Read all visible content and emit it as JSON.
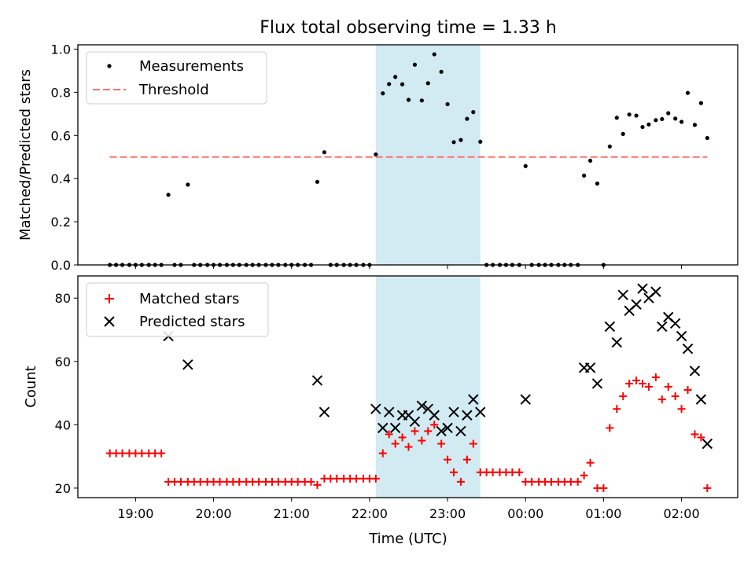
{
  "chart_data": [
    {
      "type": "scatter",
      "title": "Flux total observing time = 1.33 h",
      "ylabel": "Matched/Predicted stars",
      "ylim": [
        0,
        1.02
      ],
      "yticks": [
        "0.0",
        "0.2",
        "0.4",
        "0.6",
        "0.8",
        "1.0"
      ],
      "xlim": [
        18.26,
        26.72
      ],
      "x_unit": "hours UTC (values above 24 continue into the next day)",
      "legend_placement": "upper-left",
      "shaded_interval": {
        "x": [
          22.08,
          23.42
        ],
        "color": "#add8e6"
      },
      "series": [
        {
          "name": "Measurements",
          "kind": "points",
          "color": "#000000",
          "points": [
            [
              18.67,
              0
            ],
            [
              18.75,
              0
            ],
            [
              18.83,
              0
            ],
            [
              18.92,
              0
            ],
            [
              19.0,
              0
            ],
            [
              19.08,
              0
            ],
            [
              19.17,
              0
            ],
            [
              19.25,
              0
            ],
            [
              19.33,
              0
            ],
            [
              19.42,
              0.325
            ],
            [
              19.5,
              0
            ],
            [
              19.58,
              0
            ],
            [
              19.67,
              0.372
            ],
            [
              19.75,
              0
            ],
            [
              19.83,
              0
            ],
            [
              19.92,
              0
            ],
            [
              20.0,
              0
            ],
            [
              20.08,
              0
            ],
            [
              20.17,
              0
            ],
            [
              20.25,
              0
            ],
            [
              20.33,
              0
            ],
            [
              20.42,
              0
            ],
            [
              20.5,
              0
            ],
            [
              20.58,
              0
            ],
            [
              20.67,
              0
            ],
            [
              20.75,
              0
            ],
            [
              20.83,
              0
            ],
            [
              20.92,
              0
            ],
            [
              21.0,
              0
            ],
            [
              21.08,
              0
            ],
            [
              21.17,
              0
            ],
            [
              21.25,
              0
            ],
            [
              21.33,
              0.385
            ],
            [
              21.42,
              0.522
            ],
            [
              21.5,
              0
            ],
            [
              21.58,
              0
            ],
            [
              21.67,
              0
            ],
            [
              21.75,
              0
            ],
            [
              21.83,
              0
            ],
            [
              21.92,
              0
            ],
            [
              22.0,
              0
            ],
            [
              22.08,
              0.512
            ],
            [
              22.17,
              0.795
            ],
            [
              22.25,
              0.838
            ],
            [
              22.33,
              0.871
            ],
            [
              22.42,
              0.837
            ],
            [
              22.5,
              0.765
            ],
            [
              22.58,
              0.928
            ],
            [
              22.67,
              0.762
            ],
            [
              22.75,
              0.842
            ],
            [
              22.83,
              0.976
            ],
            [
              22.92,
              0.895
            ],
            [
              23.0,
              0.745
            ],
            [
              23.08,
              0.569
            ],
            [
              23.17,
              0.579
            ],
            [
              23.25,
              0.677
            ],
            [
              23.33,
              0.708
            ],
            [
              23.42,
              0.571
            ],
            [
              23.5,
              0
            ],
            [
              23.58,
              0
            ],
            [
              23.67,
              0
            ],
            [
              23.75,
              0
            ],
            [
              23.83,
              0
            ],
            [
              23.92,
              0
            ],
            [
              24.0,
              0.458
            ],
            [
              24.08,
              0
            ],
            [
              24.17,
              0
            ],
            [
              24.25,
              0
            ],
            [
              24.33,
              0
            ],
            [
              24.42,
              0
            ],
            [
              24.5,
              0
            ],
            [
              24.58,
              0
            ],
            [
              24.67,
              0
            ],
            [
              24.75,
              0.414
            ],
            [
              24.83,
              0.483
            ],
            [
              24.92,
              0.377
            ],
            [
              25.0,
              0
            ],
            [
              25.08,
              0.549
            ],
            [
              25.17,
              0.682
            ],
            [
              25.25,
              0.607
            ],
            [
              25.33,
              0.697
            ],
            [
              25.42,
              0.692
            ],
            [
              25.5,
              0.639
            ],
            [
              25.58,
              0.651
            ],
            [
              25.67,
              0.671
            ],
            [
              25.75,
              0.676
            ],
            [
              25.83,
              0.703
            ],
            [
              25.92,
              0.678
            ],
            [
              26.0,
              0.663
            ],
            [
              26.08,
              0.797
            ],
            [
              26.17,
              0.649
            ],
            [
              26.25,
              0.75
            ],
            [
              26.33,
              0.588
            ]
          ]
        },
        {
          "name": "Threshold",
          "kind": "dashed-line",
          "color": "#ff7070",
          "points": [
            [
              18.67,
              0.5
            ],
            [
              26.33,
              0.5
            ]
          ]
        }
      ]
    },
    {
      "type": "scatter",
      "xlabel": "Time (UTC)",
      "ylabel": "Count",
      "ylim": [
        17,
        87
      ],
      "yticks": [
        "20",
        "40",
        "60",
        "80"
      ],
      "xlim": [
        18.26,
        26.72
      ],
      "xticks": [
        {
          "x": 19,
          "label": "19:00"
        },
        {
          "x": 20,
          "label": "20:00"
        },
        {
          "x": 21,
          "label": "21:00"
        },
        {
          "x": 22,
          "label": "22:00"
        },
        {
          "x": 23,
          "label": "23:00"
        },
        {
          "x": 24,
          "label": "00:00"
        },
        {
          "x": 25,
          "label": "01:00"
        },
        {
          "x": 26,
          "label": "02:00"
        }
      ],
      "legend_placement": "upper-left",
      "shaded_interval": {
        "x": [
          22.08,
          23.42
        ],
        "color": "#add8e6"
      },
      "series": [
        {
          "name": "Matched stars",
          "kind": "plus",
          "color": "#ff0000",
          "points": [
            [
              18.67,
              31
            ],
            [
              18.75,
              31
            ],
            [
              18.83,
              31
            ],
            [
              18.92,
              31
            ],
            [
              19.0,
              31
            ],
            [
              19.08,
              31
            ],
            [
              19.17,
              31
            ],
            [
              19.25,
              31
            ],
            [
              19.33,
              31
            ],
            [
              19.42,
              22
            ],
            [
              19.5,
              22
            ],
            [
              19.58,
              22
            ],
            [
              19.67,
              22
            ],
            [
              19.75,
              22
            ],
            [
              19.83,
              22
            ],
            [
              19.92,
              22
            ],
            [
              20.0,
              22
            ],
            [
              20.08,
              22
            ],
            [
              20.17,
              22
            ],
            [
              20.25,
              22
            ],
            [
              20.33,
              22
            ],
            [
              20.42,
              22
            ],
            [
              20.5,
              22
            ],
            [
              20.58,
              22
            ],
            [
              20.67,
              22
            ],
            [
              20.75,
              22
            ],
            [
              20.83,
              22
            ],
            [
              20.92,
              22
            ],
            [
              21.0,
              22
            ],
            [
              21.08,
              22
            ],
            [
              21.17,
              22
            ],
            [
              21.25,
              22
            ],
            [
              21.33,
              21
            ],
            [
              21.42,
              23
            ],
            [
              21.5,
              23
            ],
            [
              21.58,
              23
            ],
            [
              21.67,
              23
            ],
            [
              21.75,
              23
            ],
            [
              21.83,
              23
            ],
            [
              21.92,
              23
            ],
            [
              22.0,
              23
            ],
            [
              22.08,
              23
            ],
            [
              22.17,
              31
            ],
            [
              22.25,
              37
            ],
            [
              22.33,
              34
            ],
            [
              22.42,
              36
            ],
            [
              22.5,
              33
            ],
            [
              22.58,
              38
            ],
            [
              22.67,
              35
            ],
            [
              22.75,
              38
            ],
            [
              22.83,
              40
            ],
            [
              22.92,
              34
            ],
            [
              23.0,
              29
            ],
            [
              23.08,
              25
            ],
            [
              23.17,
              22
            ],
            [
              23.25,
              29
            ],
            [
              23.33,
              34
            ],
            [
              23.42,
              25
            ],
            [
              23.5,
              25
            ],
            [
              23.58,
              25
            ],
            [
              23.67,
              25
            ],
            [
              23.75,
              25
            ],
            [
              23.83,
              25
            ],
            [
              23.92,
              25
            ],
            [
              24.0,
              22
            ],
            [
              24.08,
              22
            ],
            [
              24.17,
              22
            ],
            [
              24.25,
              22
            ],
            [
              24.33,
              22
            ],
            [
              24.42,
              22
            ],
            [
              24.5,
              22
            ],
            [
              24.58,
              22
            ],
            [
              24.67,
              22
            ],
            [
              24.75,
              24
            ],
            [
              24.83,
              28
            ],
            [
              24.92,
              20
            ],
            [
              25.0,
              20
            ],
            [
              25.08,
              39
            ],
            [
              25.17,
              45
            ],
            [
              25.25,
              49
            ],
            [
              25.33,
              53
            ],
            [
              25.42,
              54
            ],
            [
              25.5,
              53
            ],
            [
              25.58,
              52
            ],
            [
              25.67,
              55
            ],
            [
              25.75,
              48
            ],
            [
              25.83,
              52
            ],
            [
              25.92,
              49
            ],
            [
              26.0,
              45
            ],
            [
              26.08,
              51
            ],
            [
              26.17,
              37
            ],
            [
              26.25,
              36
            ],
            [
              26.33,
              20
            ]
          ]
        },
        {
          "name": "Predicted stars",
          "kind": "cross",
          "color": "#000000",
          "points": [
            [
              19.42,
              68
            ],
            [
              19.67,
              59
            ],
            [
              21.33,
              54
            ],
            [
              21.42,
              44
            ],
            [
              22.08,
              45
            ],
            [
              22.17,
              39
            ],
            [
              22.25,
              44
            ],
            [
              22.33,
              39
            ],
            [
              22.42,
              43
            ],
            [
              22.5,
              43
            ],
            [
              22.58,
              41
            ],
            [
              22.67,
              46
            ],
            [
              22.75,
              45
            ],
            [
              22.83,
              43
            ],
            [
              22.92,
              38
            ],
            [
              23.0,
              39
            ],
            [
              23.08,
              44
            ],
            [
              23.17,
              38
            ],
            [
              23.25,
              43
            ],
            [
              23.33,
              48
            ],
            [
              23.42,
              44
            ],
            [
              24.0,
              48
            ],
            [
              24.75,
              58
            ],
            [
              24.83,
              58
            ],
            [
              24.92,
              53
            ],
            [
              25.08,
              71
            ],
            [
              25.17,
              66
            ],
            [
              25.25,
              81
            ],
            [
              25.33,
              76
            ],
            [
              25.42,
              78
            ],
            [
              25.5,
              83
            ],
            [
              25.58,
              80
            ],
            [
              25.67,
              82
            ],
            [
              25.75,
              71
            ],
            [
              25.83,
              74
            ],
            [
              25.92,
              72
            ],
            [
              26.0,
              68
            ],
            [
              26.08,
              64
            ],
            [
              26.17,
              57
            ],
            [
              26.25,
              48
            ],
            [
              26.33,
              34
            ]
          ]
        }
      ]
    }
  ]
}
